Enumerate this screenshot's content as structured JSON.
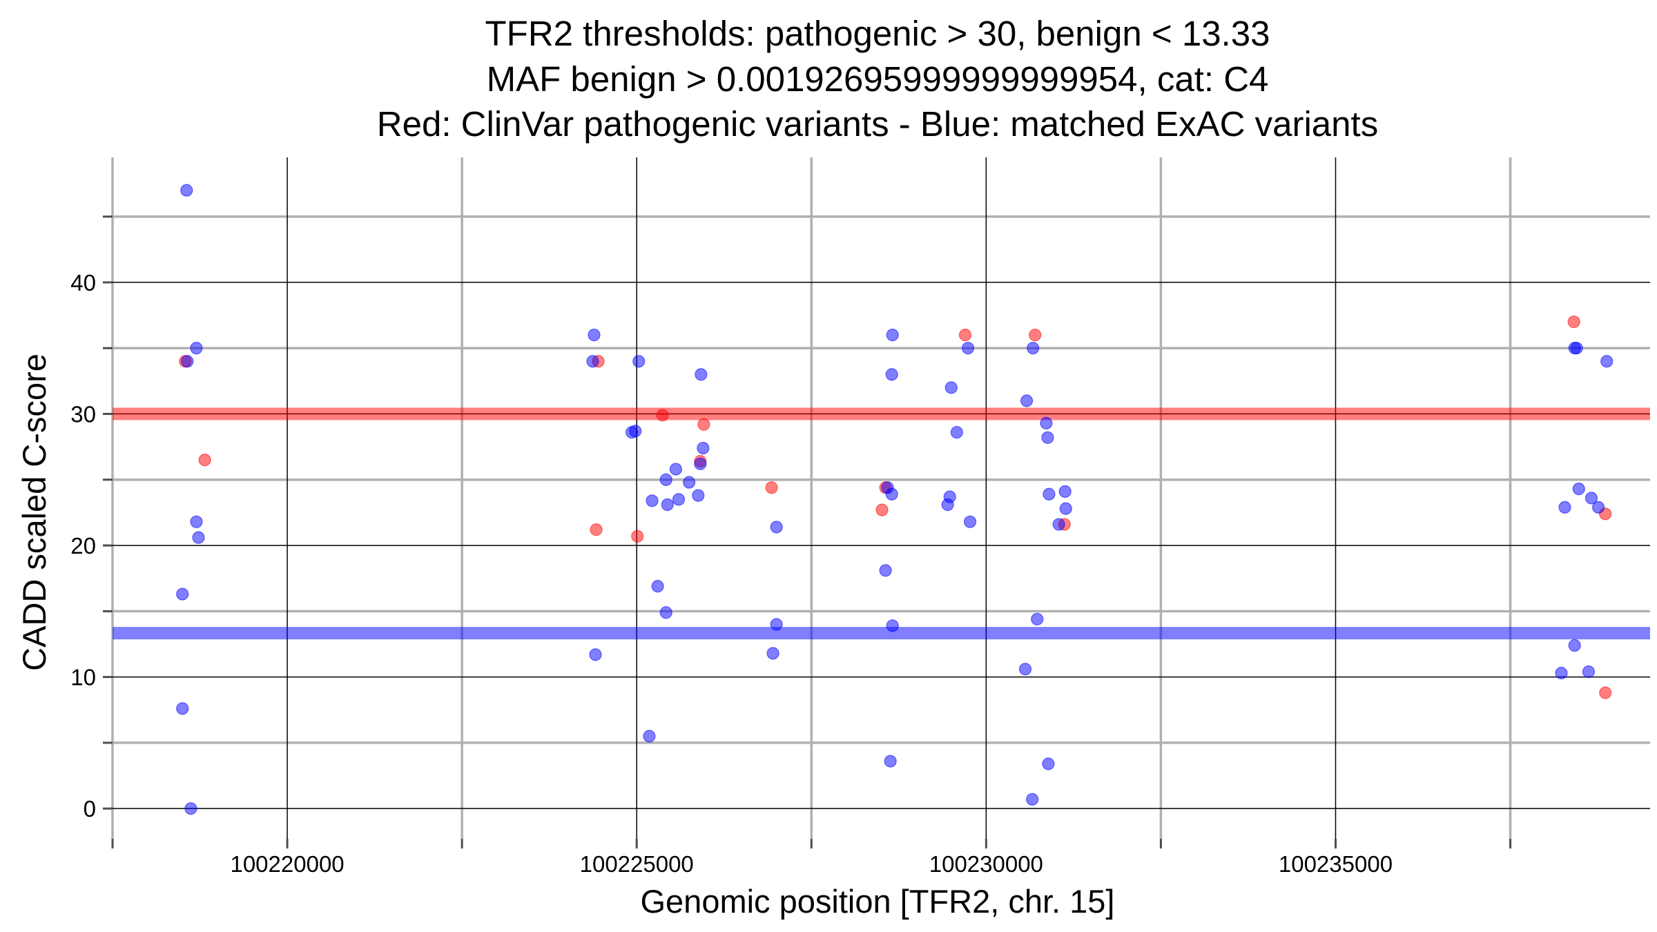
{
  "chart_data": {
    "type": "scatter",
    "title_lines": [
      "TFR2 thresholds: pathogenic > 30, benign < 13.33",
      "MAF benign > 0.00192695999999999954, cat: C4",
      "Red: ClinVar pathogenic variants - Blue: matched ExAC variants"
    ],
    "xlabel": "Genomic position [TFR2, chr. 15]",
    "ylabel": "CADD scaled C-score",
    "xlim": [
      100217500,
      100239500
    ],
    "ylim": [
      -2.3,
      49.5
    ],
    "x_ticks": [
      100220000,
      100225000,
      100230000,
      100235000
    ],
    "x_tick_labels": [
      "100220000",
      "100225000",
      "100230000",
      "100235000"
    ],
    "x_minor_breaks": [
      100217500,
      100222500,
      100227500,
      100232500,
      100237500
    ],
    "y_ticks": [
      0,
      10,
      20,
      30,
      40
    ],
    "y_tick_labels": [
      "0",
      "10",
      "20",
      "30",
      "40"
    ],
    "y_minor_breaks": [
      5,
      15,
      25,
      35,
      45
    ],
    "thresholds": [
      {
        "name": "pathogenic",
        "value": 30,
        "color": "#ff0000"
      },
      {
        "name": "benign",
        "value": 13.33,
        "color": "#0000ff"
      }
    ],
    "colors": {
      "pathogenic": "#ff0000",
      "benign": "#0000ff"
    },
    "series": [
      {
        "name": "ClinVar pathogenic variants",
        "color": "#ff0000",
        "points": [
          [
            100218540,
            34
          ],
          [
            100218820,
            26.5
          ],
          [
            100224450,
            34
          ],
          [
            100224420,
            21.2
          ],
          [
            100225370,
            29.9
          ],
          [
            100225010,
            20.7
          ],
          [
            100225910,
            26.4
          ],
          [
            100225960,
            29.2
          ],
          [
            100226930,
            24.4
          ],
          [
            100228560,
            24.4
          ],
          [
            100228510,
            22.7
          ],
          [
            100229700,
            36
          ],
          [
            100230700,
            36
          ],
          [
            100231120,
            21.6
          ],
          [
            100238410,
            37
          ],
          [
            100238860,
            22.4
          ],
          [
            100238860,
            8.8
          ]
        ]
      },
      {
        "name": "matched ExAC variants",
        "color": "#0000ff",
        "points": [
          [
            100218560,
            47
          ],
          [
            100218570,
            34
          ],
          [
            100218700,
            35
          ],
          [
            100218700,
            21.8
          ],
          [
            100218730,
            20.6
          ],
          [
            100218500,
            16.3
          ],
          [
            100218500,
            7.6
          ],
          [
            100218620,
            0
          ],
          [
            100224390,
            36
          ],
          [
            100224370,
            34
          ],
          [
            100225030,
            34
          ],
          [
            100225920,
            33
          ],
          [
            100224930,
            28.6
          ],
          [
            100224980,
            28.7
          ],
          [
            100225950,
            27.4
          ],
          [
            100225910,
            26.2
          ],
          [
            100225560,
            25.8
          ],
          [
            100225750,
            24.8
          ],
          [
            100225420,
            25
          ],
          [
            100225220,
            23.4
          ],
          [
            100225440,
            23.1
          ],
          [
            100225600,
            23.5
          ],
          [
            100225880,
            23.8
          ],
          [
            100227000,
            21.4
          ],
          [
            100225300,
            16.9
          ],
          [
            100225420,
            14.9
          ],
          [
            100227000,
            14
          ],
          [
            100224410,
            11.7
          ],
          [
            100226950,
            11.8
          ],
          [
            100225180,
            5.5
          ],
          [
            100228660,
            36
          ],
          [
            100228650,
            33
          ],
          [
            100228590,
            24.4
          ],
          [
            100228650,
            23.9
          ],
          [
            100228560,
            18.1
          ],
          [
            100228660,
            13.9
          ],
          [
            100228630,
            3.6
          ],
          [
            100229740,
            35
          ],
          [
            100229500,
            32
          ],
          [
            100229580,
            28.6
          ],
          [
            100229480,
            23.7
          ],
          [
            100229450,
            23.1
          ],
          [
            100229770,
            21.8
          ],
          [
            100230580,
            31
          ],
          [
            100230670,
            35
          ],
          [
            100230860,
            29.3
          ],
          [
            100230880,
            28.2
          ],
          [
            100230900,
            23.9
          ],
          [
            100231130,
            24.1
          ],
          [
            100231140,
            22.8
          ],
          [
            100231040,
            21.6
          ],
          [
            100230730,
            14.4
          ],
          [
            100230560,
            10.6
          ],
          [
            100230890,
            3.4
          ],
          [
            100230660,
            0.7
          ],
          [
            100238450,
            35
          ],
          [
            100238420,
            35
          ],
          [
            100238880,
            34
          ],
          [
            100238480,
            24.3
          ],
          [
            100238660,
            23.6
          ],
          [
            100238760,
            22.9
          ],
          [
            100238280,
            22.9
          ],
          [
            100238420,
            12.4
          ],
          [
            100238620,
            10.4
          ],
          [
            100238230,
            10.3
          ]
        ]
      }
    ]
  }
}
